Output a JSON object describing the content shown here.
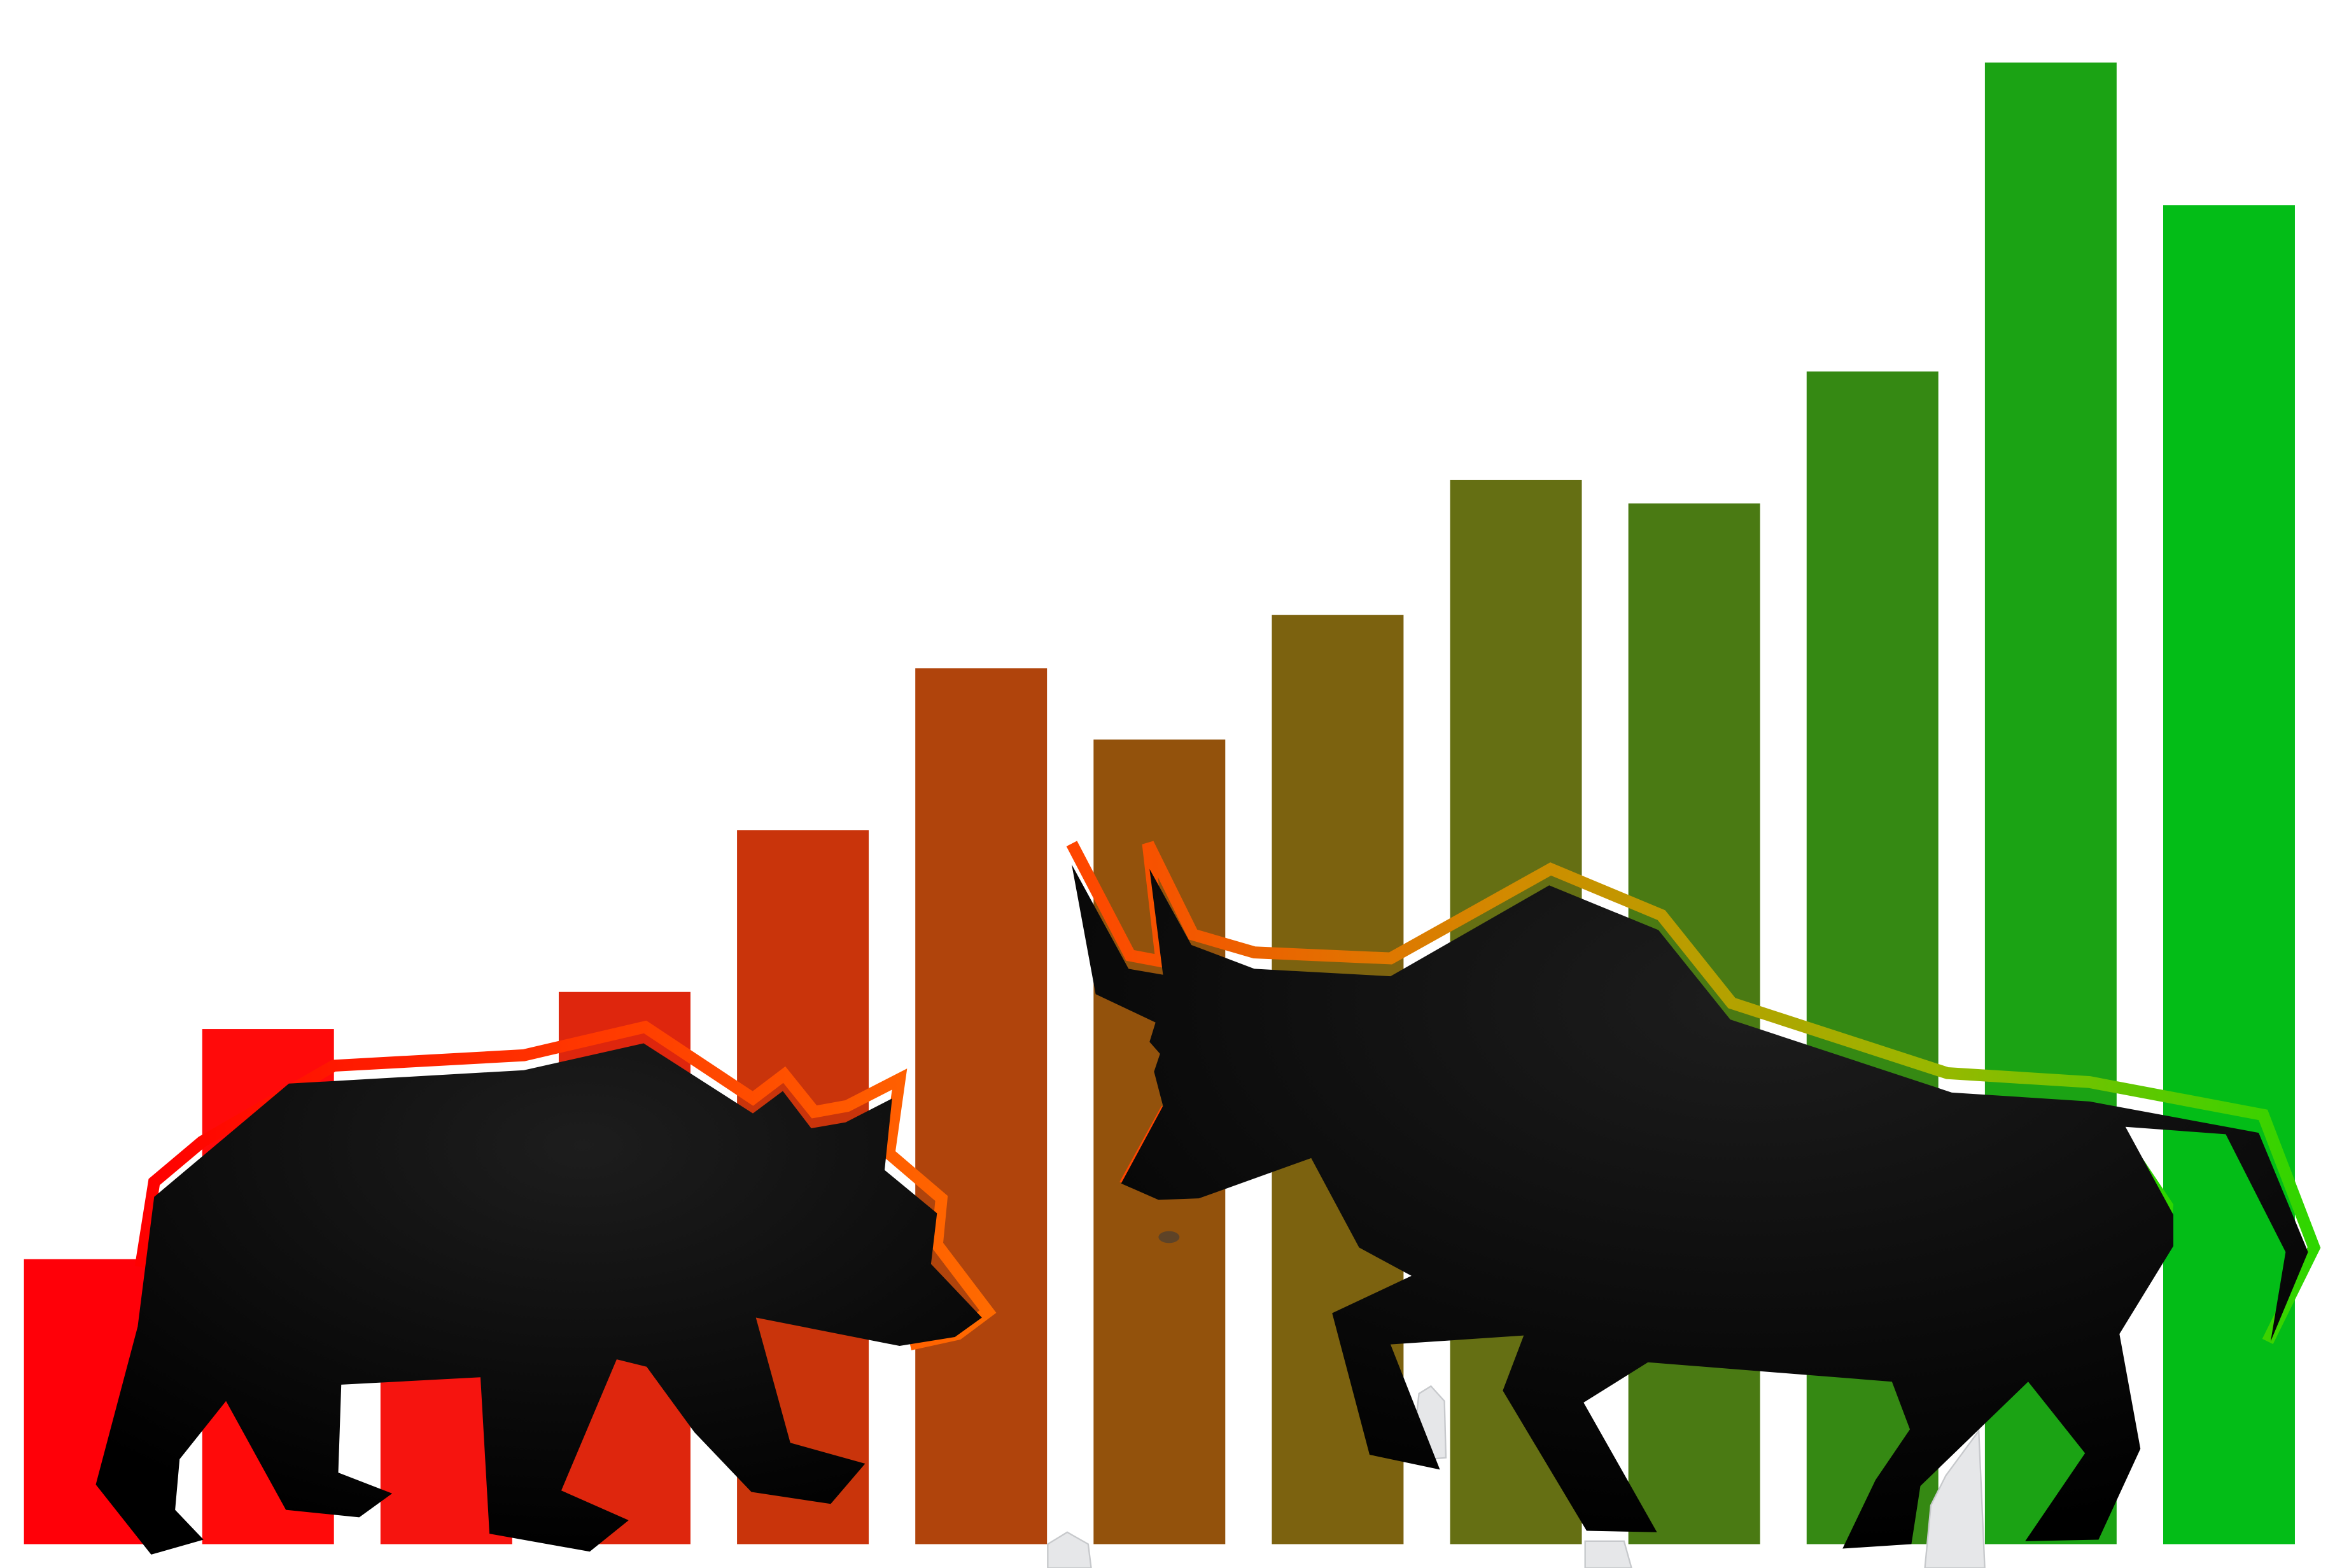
{
  "illustration": {
    "subject": "bear-vs-bull-market",
    "background_color": "#ffffff",
    "silhouette_color": "#0a0a0a",
    "bars": [
      {
        "level": 0.192,
        "color": "#ff0008"
      },
      {
        "level": 0.347,
        "color": "#ff0a0a"
      },
      {
        "level": 0.256,
        "color": "#f6140f"
      },
      {
        "level": 0.372,
        "color": "#de260d"
      },
      {
        "level": 0.481,
        "color": "#c9340b"
      },
      {
        "level": 0.59,
        "color": "#b0440c"
      },
      {
        "level": 0.542,
        "color": "#93520c"
      },
      {
        "level": 0.626,
        "color": "#7c620f"
      },
      {
        "level": 0.717,
        "color": "#656f13"
      },
      {
        "level": 0.701,
        "color": "#4a7a13"
      },
      {
        "level": 0.79,
        "color": "#358913"
      },
      {
        "level": 0.998,
        "color": "#1ba314"
      },
      {
        "level": 0.902,
        "color": "#03bd17"
      }
    ],
    "bear": {
      "outline_colors": [
        "#ff0000",
        "#ff6a00"
      ],
      "icon": "bear-icon"
    },
    "bull": {
      "outline_colors": [
        "#ff4500",
        "#d28a00",
        "#97b800",
        "#2ed600"
      ],
      "icon": "bull-icon"
    }
  }
}
